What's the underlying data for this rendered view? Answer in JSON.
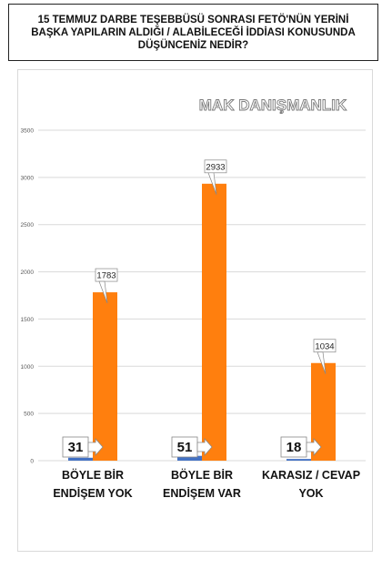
{
  "title": "15 TEMMUZ DARBE TEŞEBBÜSÜ SONRASI FETÖ'NÜN YERİNİ\nBAŞKA YAPILARIN ALDIĞI / ALABİLECEĞİ İDDİASI KONUSUNDA\nDÜŞÜNCENİZ NEDİR?",
  "watermark": "MAK DANIŞMANLIK",
  "colors": {
    "small_bar": "#4472c4",
    "big_bar": "#ff7f0e",
    "grid": "#d9d9d9",
    "axis_text": "#595959"
  },
  "chart_data": {
    "type": "bar",
    "categories": [
      "BÖYLE BİR ENDİŞEM YOK",
      "BÖYLE BİR ENDİŞEM VAR",
      "KARASIZ / CEVAP YOK"
    ],
    "category_lines": [
      [
        "BÖYLE BİR",
        "ENDİŞEM YOK"
      ],
      [
        "BÖYLE BİR",
        "ENDİŞEM VAR"
      ],
      [
        "KARASIZ / CEVAP",
        "YOK"
      ]
    ],
    "series": [
      {
        "values": [
          31,
          51,
          18
        ],
        "labels": [
          "31",
          "51",
          "18"
        ]
      },
      {
        "values": [
          1783,
          2933,
          1034
        ],
        "labels": [
          "1783",
          "2933",
          "1034"
        ]
      }
    ],
    "yticks": [
      "0",
      "500",
      "1000",
      "1500",
      "2000",
      "2500",
      "3000",
      "3500"
    ],
    "ylim": [
      0,
      3500
    ],
    "grid": true
  }
}
